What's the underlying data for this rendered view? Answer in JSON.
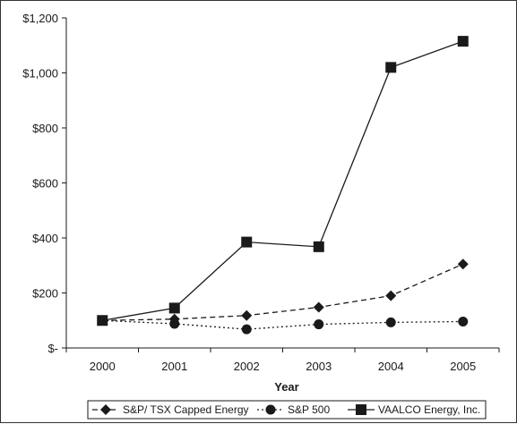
{
  "chart_data": {
    "type": "line",
    "title": "",
    "xlabel": "Year",
    "ylabel": "",
    "categories": [
      "2000",
      "2001",
      "2002",
      "2003",
      "2004",
      "2005"
    ],
    "y_ticks": [
      "$-",
      "$200",
      "$400",
      "$600",
      "$800",
      "$1,000",
      "$1,200"
    ],
    "ylim": [
      0,
      1200
    ],
    "grid": false,
    "legend_position": "bottom",
    "series": [
      {
        "name": "S&P/ TSX Capped Energy",
        "marker": "diamond",
        "line_style": "dashed",
        "values": [
          100,
          105,
          118,
          148,
          190,
          305
        ]
      },
      {
        "name": "S&P 500",
        "marker": "circle",
        "line_style": "dotted",
        "values": [
          100,
          88,
          68,
          86,
          93,
          96
        ]
      },
      {
        "name": "VAALCO Energy, Inc.",
        "marker": "square",
        "line_style": "solid",
        "values": [
          100,
          145,
          385,
          368,
          1020,
          1115
        ]
      }
    ]
  }
}
